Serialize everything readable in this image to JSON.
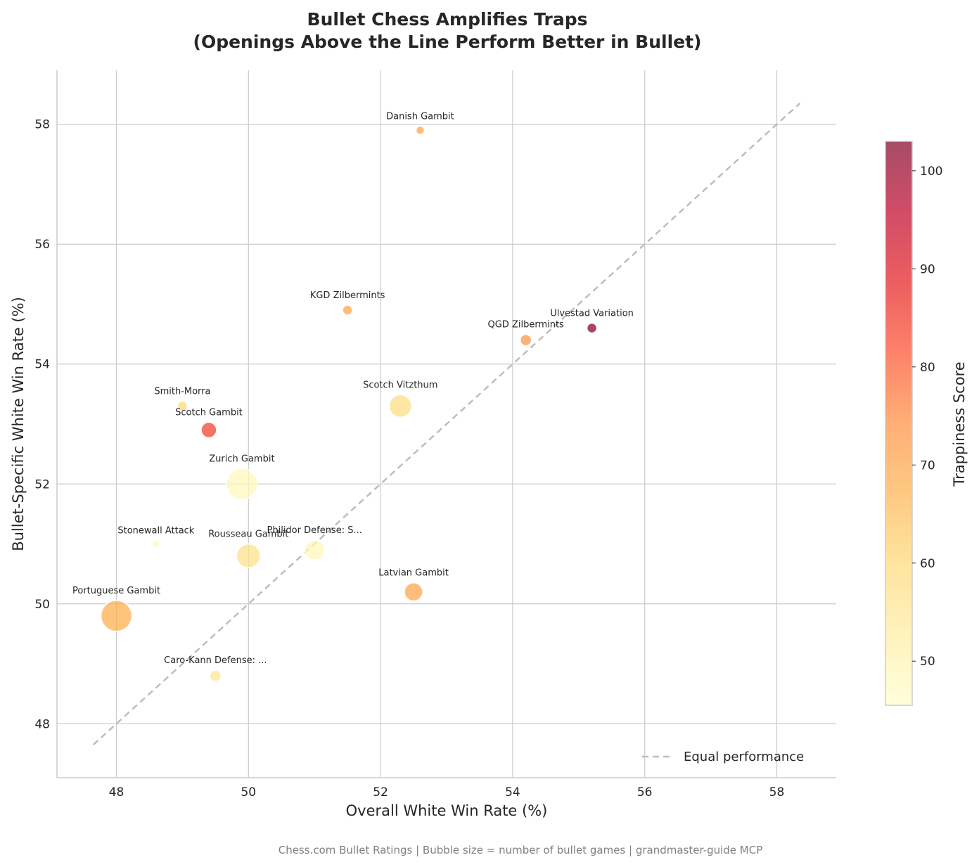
{
  "chart_data": {
    "type": "scatter",
    "title": [
      "Bullet Chess Amplifies Traps",
      "(Openings Above the Line Perform Better in Bullet)"
    ],
    "xlabel": "Overall White Win Rate (%)",
    "ylabel": "Bullet-Specific White Win Rate (%)",
    "xlim": [
      47.1,
      58.9
    ],
    "ylim": [
      47.1,
      58.9
    ],
    "xticks": [
      48,
      50,
      52,
      54,
      56,
      58
    ],
    "yticks": [
      48,
      50,
      52,
      54,
      56,
      58
    ],
    "grid": true,
    "reference_line": {
      "label": "Equal performance",
      "from": 47.65,
      "to": 58.35,
      "color": "#bdbdbd"
    },
    "legend_position": "lower-right",
    "colorbar": {
      "label": "Trappiness Score",
      "min": 45.5,
      "max": 103,
      "ticks": [
        50,
        60,
        70,
        80,
        90,
        100
      ]
    },
    "points": [
      {
        "label": "Danish Gambit",
        "x": 52.6,
        "y": 57.9,
        "trappiness": 70,
        "size": 6
      },
      {
        "label": "KGD Zilbermints",
        "x": 51.5,
        "y": 54.9,
        "trappiness": 70,
        "size": 7
      },
      {
        "label": "QGD Zilbermints",
        "x": 54.2,
        "y": 54.4,
        "trappiness": 73,
        "size": 8
      },
      {
        "label": "Ulvestad Variation",
        "x": 55.2,
        "y": 54.6,
        "trappiness": 102,
        "size": 7
      },
      {
        "label": "Smith-Morra",
        "x": 49.0,
        "y": 53.3,
        "trappiness": 60,
        "size": 7
      },
      {
        "label": "Scotch Gambit",
        "x": 49.4,
        "y": 52.9,
        "trappiness": 84,
        "size": 11
      },
      {
        "label": "Scotch Vitzthum",
        "x": 52.3,
        "y": 53.3,
        "trappiness": 58,
        "size": 16
      },
      {
        "label": "Zurich Gambit",
        "x": 49.9,
        "y": 52.0,
        "trappiness": 49,
        "size": 22
      },
      {
        "label": "Stonewall Attack",
        "x": 48.6,
        "y": 51.0,
        "trappiness": 49,
        "size": 5
      },
      {
        "label": "Philidor Defense: S...",
        "x": 51.0,
        "y": 50.9,
        "trappiness": 49,
        "size": 14
      },
      {
        "label": "Rousseau Gambit",
        "x": 50.0,
        "y": 50.8,
        "trappiness": 57,
        "size": 17
      },
      {
        "label": "Latvian Gambit",
        "x": 52.5,
        "y": 50.2,
        "trappiness": 70,
        "size": 13
      },
      {
        "label": "Portuguese Gambit",
        "x": 48.0,
        "y": 49.8,
        "trappiness": 68,
        "size": 22
      },
      {
        "label": "Caro-Kann Defense: ...",
        "x": 49.5,
        "y": 48.8,
        "trappiness": 56,
        "size": 8
      }
    ],
    "footer": "Chess.com Bullet Ratings | Bubble size = number of bullet games | grandmaster-guide MCP"
  }
}
